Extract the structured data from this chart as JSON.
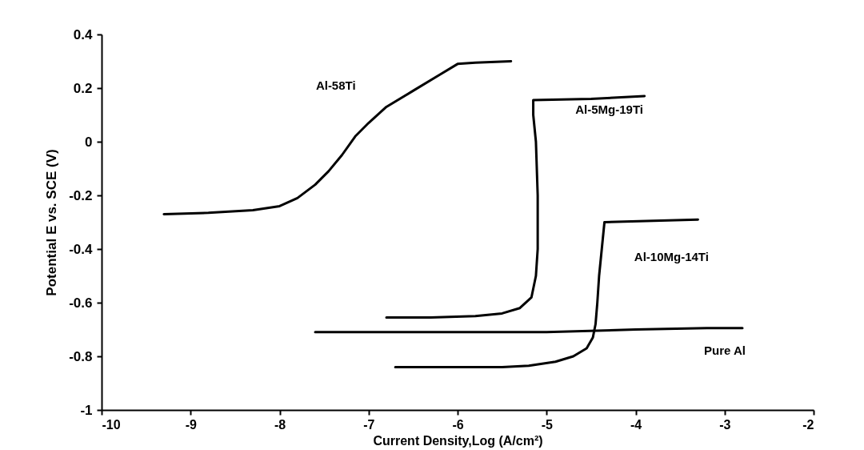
{
  "chart_data": {
    "type": "line",
    "xlabel": "Current Density,Log (A/cm²)",
    "ylabel": "Potential E vs. SCE (V)",
    "xlim": [
      -10,
      -2
    ],
    "xticks": [
      -10,
      -9,
      -8,
      -7,
      -6,
      -5,
      -4,
      -3,
      -2
    ],
    "ylim": [
      -1,
      0.4
    ],
    "yticks": [
      -1,
      -0.8,
      -0.6,
      -0.4,
      -0.2,
      0,
      0.2,
      0.4
    ],
    "marker": "none",
    "line_style": "solid",
    "series": [
      {
        "name": "Al-58Ti",
        "color": "#000000",
        "x": [
          -9.3,
          -8.8,
          -8.3,
          -8.0,
          -7.8,
          -7.6,
          -7.45,
          -7.3,
          -7.15,
          -7.0,
          -6.8,
          -6.5,
          -6.2,
          -6.0,
          -5.8,
          -5.4
        ],
        "values": [
          -0.27,
          -0.265,
          -0.255,
          -0.24,
          -0.21,
          -0.16,
          -0.11,
          -0.05,
          0.02,
          0.07,
          0.13,
          0.19,
          0.25,
          0.29,
          0.295,
          0.3
        ]
      },
      {
        "name": "Al-5Mg-19Ti",
        "color": "#000000",
        "x": [
          -6.8,
          -6.3,
          -5.8,
          -5.5,
          -5.3,
          -5.17,
          -5.12,
          -5.1,
          -5.1,
          -5.12,
          -5.15,
          -5.15,
          -4.5,
          -3.9
        ],
        "values": [
          -0.655,
          -0.655,
          -0.65,
          -0.64,
          -0.62,
          -0.58,
          -0.5,
          -0.4,
          -0.2,
          0.0,
          0.1,
          0.155,
          0.16,
          0.17
        ]
      },
      {
        "name": "Al-10Mg-14Ti",
        "color": "#000000",
        "x": [
          -6.7,
          -6.0,
          -5.5,
          -5.2,
          -4.9,
          -4.7,
          -4.55,
          -4.48,
          -4.45,
          -4.43,
          -4.41,
          -4.38,
          -4.35,
          -3.8,
          -3.3
        ],
        "values": [
          -0.84,
          -0.84,
          -0.84,
          -0.835,
          -0.82,
          -0.8,
          -0.77,
          -0.73,
          -0.68,
          -0.6,
          -0.5,
          -0.4,
          -0.3,
          -0.295,
          -0.29
        ]
      },
      {
        "name": "Pure Al",
        "color": "#000000",
        "x": [
          -7.6,
          -7.0,
          -6.5,
          -6.0,
          -5.0,
          -4.0,
          -3.2,
          -2.8
        ],
        "values": [
          -0.71,
          -0.71,
          -0.71,
          -0.71,
          -0.71,
          -0.7,
          -0.695,
          -0.695
        ]
      }
    ]
  }
}
